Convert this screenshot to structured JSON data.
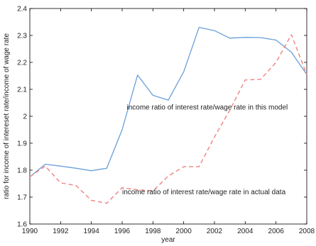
{
  "chart_data": {
    "type": "line",
    "xlabel": "year",
    "ylabel": "ratio for income of intereset rate/income of wage rate",
    "xlim": [
      1990,
      2008
    ],
    "ylim": [
      1.6,
      2.4
    ],
    "xticks": [
      1990,
      1992,
      1994,
      1996,
      1998,
      2000,
      2002,
      2004,
      2006,
      2008
    ],
    "yticks": [
      1.6,
      1.7,
      1.8,
      1.9,
      2.0,
      2.1,
      2.2,
      2.3,
      2.4
    ],
    "ytick_labels": [
      "1.6",
      "1.7",
      "1.8",
      "1.9",
      "2",
      "2.1",
      "2.2",
      "2.3",
      "2.4"
    ],
    "grid": false,
    "x": [
      1990,
      1991,
      1992,
      1993,
      1994,
      1995,
      1996,
      1997,
      1998,
      1999,
      2000,
      2001,
      2002,
      2003,
      2004,
      2005,
      2006,
      2007,
      2008
    ],
    "series": [
      {
        "style": "solid",
        "color": "#6a9fd8",
        "values": [
          1.775,
          1.822,
          1.815,
          1.807,
          1.798,
          1.807,
          1.95,
          2.153,
          2.078,
          2.06,
          2.165,
          2.33,
          2.318,
          2.29,
          2.293,
          2.292,
          2.283,
          2.238,
          2.155
        ]
      },
      {
        "style": "dashed",
        "color": "#f08a8a",
        "values": [
          1.775,
          1.815,
          1.753,
          1.743,
          1.688,
          1.677,
          1.735,
          1.727,
          1.723,
          1.778,
          1.813,
          1.813,
          1.923,
          2.023,
          2.135,
          2.137,
          2.2,
          2.303,
          2.155
        ]
      }
    ],
    "annotations": [
      {
        "text": "income ratio of interest rate/wage rate in this model",
        "x": 1996.3,
        "y": 2.025
      },
      {
        "text": "income ratio of interest rate/wage rate in actual data",
        "x": 1996.0,
        "y": 1.711
      }
    ]
  }
}
